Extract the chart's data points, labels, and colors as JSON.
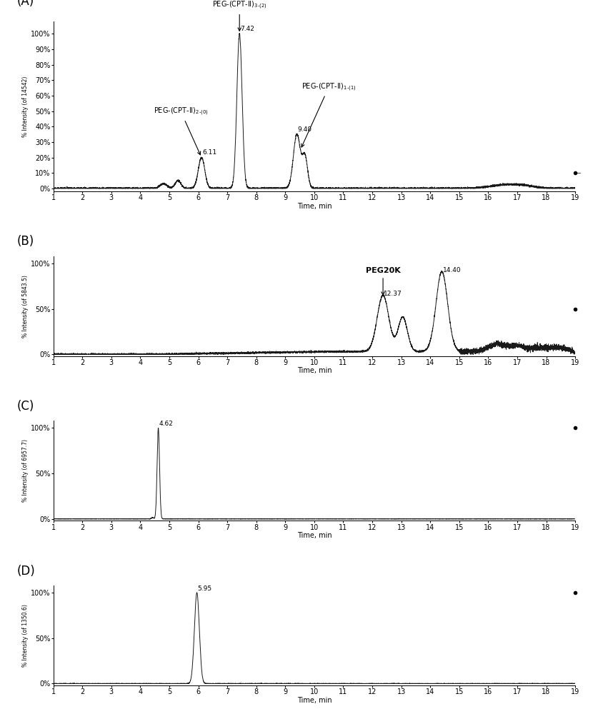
{
  "panel_labels": [
    "(A)",
    "(B)",
    "(C)",
    "(D)"
  ],
  "xlim": [
    1,
    19
  ],
  "xticks": [
    1,
    2,
    3,
    4,
    5,
    6,
    7,
    8,
    9,
    10,
    11,
    12,
    13,
    14,
    15,
    16,
    17,
    18,
    19
  ],
  "xlabel": "Time, min",
  "panel_A": {
    "ylabel": "% Intensity (of 14542)",
    "yticks": [
      0,
      10,
      20,
      30,
      40,
      50,
      60,
      70,
      80,
      90,
      100
    ],
    "yticklabels": [
      "0%",
      "10%",
      "20%",
      "30%",
      "40%",
      "50%",
      "60%",
      "70%",
      "80%",
      "90%",
      "100%"
    ],
    "star_y": 10
  },
  "panel_B": {
    "ylabel": "% Intensity (of 5843.5)",
    "yticks": [
      0,
      50,
      100
    ],
    "yticklabels": [
      "0%",
      "50%",
      "100%"
    ],
    "star_y": 50
  },
  "panel_C": {
    "ylabel": "% Intensity (of 6957.7)",
    "yticks": [
      0,
      50,
      100
    ],
    "yticklabels": [
      "0%",
      "50%",
      "100%"
    ],
    "star_y": 100
  },
  "panel_D": {
    "ylabel": "% Intensity (of 1350.6)",
    "yticks": [
      0,
      50,
      100
    ],
    "yticklabels": [
      "0%",
      "50%",
      "100%"
    ],
    "star_y": 100
  },
  "line_color": "#1a1a1a",
  "bg_color": "#ffffff",
  "axis_fontsize": 7,
  "panel_label_fontsize": 12,
  "annot_fontsize": 7,
  "peak_label_fontsize": 6.5
}
